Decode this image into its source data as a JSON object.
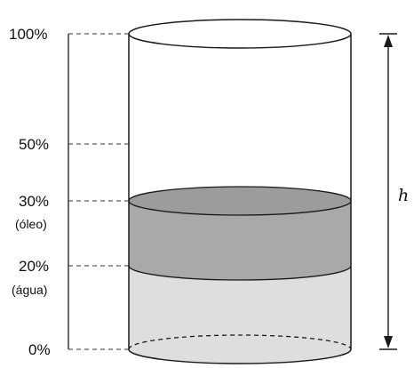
{
  "levels": [
    {
      "pct_label": "100%",
      "sub_label": ""
    },
    {
      "pct_label": "50%",
      "sub_label": ""
    },
    {
      "pct_label": "30%",
      "sub_label": "(óleo)"
    },
    {
      "pct_label": "20%",
      "sub_label": "(água)"
    },
    {
      "pct_label": "0%",
      "sub_label": ""
    }
  ],
  "height_label": "h",
  "fill_levels": {
    "water_top_percent": 20,
    "oil_top_percent": 30
  },
  "colors": {
    "oil": "#a9a9a9",
    "water": "#dedede",
    "stroke": "#1a1a1a"
  }
}
